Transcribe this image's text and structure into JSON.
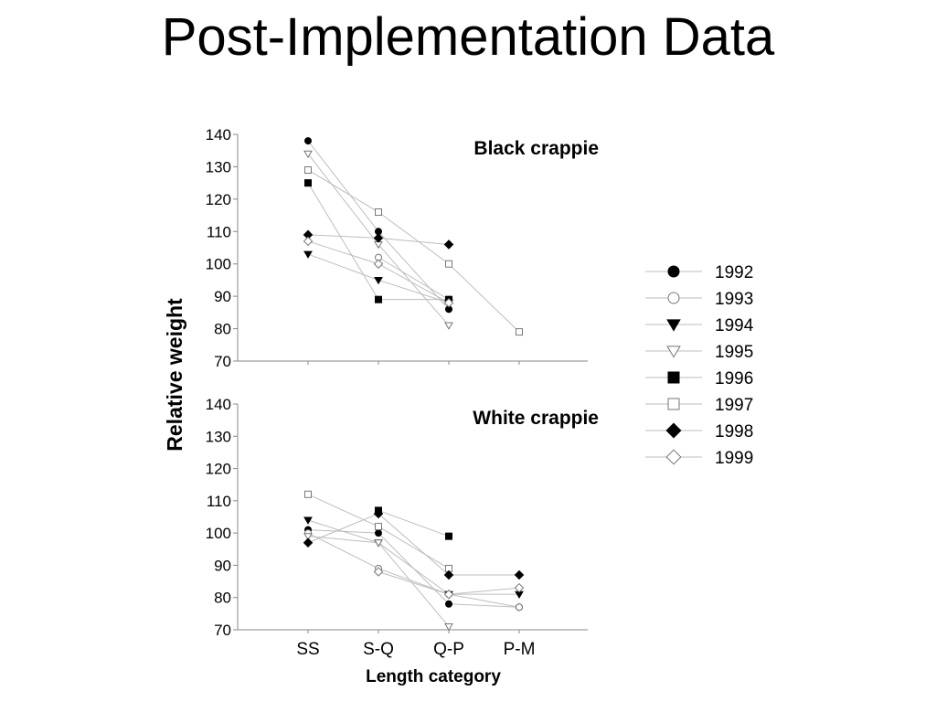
{
  "slide": {
    "title": "Post-Implementation Data"
  },
  "chart_data": [
    {
      "type": "line",
      "title": "Black crappie",
      "xlabel": "Length category",
      "ylabel": "Relative weight",
      "categories": [
        "SS",
        "S-Q",
        "Q-P",
        "P-M"
      ],
      "ylim": [
        70,
        140
      ],
      "yticks": [
        70,
        80,
        90,
        100,
        110,
        120,
        130,
        140
      ],
      "legend_position": "right",
      "series": [
        {
          "name": "1992",
          "marker": "circle",
          "filled": true,
          "values": [
            138,
            110,
            86,
            null
          ]
        },
        {
          "name": "1993",
          "marker": "circle",
          "filled": false,
          "values": [
            null,
            102,
            89,
            null
          ]
        },
        {
          "name": "1994",
          "marker": "triangle-down",
          "filled": true,
          "values": [
            103,
            95,
            88,
            null
          ]
        },
        {
          "name": "1995",
          "marker": "triangle-down",
          "filled": false,
          "values": [
            134,
            106,
            81,
            null
          ]
        },
        {
          "name": "1996",
          "marker": "square",
          "filled": true,
          "values": [
            125,
            89,
            89,
            null
          ]
        },
        {
          "name": "1997",
          "marker": "square",
          "filled": false,
          "values": [
            129,
            116,
            100,
            79
          ]
        },
        {
          "name": "1998",
          "marker": "diamond",
          "filled": true,
          "values": [
            109,
            108,
            106,
            null
          ]
        },
        {
          "name": "1999",
          "marker": "diamond",
          "filled": false,
          "values": [
            107,
            100,
            88,
            null
          ]
        }
      ]
    },
    {
      "type": "line",
      "title": "White crappie",
      "xlabel": "Length category",
      "ylabel": "Relative weight",
      "categories": [
        "SS",
        "S-Q",
        "Q-P",
        "P-M"
      ],
      "ylim": [
        70,
        140
      ],
      "yticks": [
        70,
        80,
        90,
        100,
        110,
        120,
        130,
        140
      ],
      "legend_position": "right",
      "series": [
        {
          "name": "1992",
          "marker": "circle",
          "filled": true,
          "values": [
            101,
            100,
            78,
            77
          ]
        },
        {
          "name": "1993",
          "marker": "circle",
          "filled": false,
          "values": [
            100,
            89,
            81,
            77
          ]
        },
        {
          "name": "1994",
          "marker": "triangle-down",
          "filled": true,
          "values": [
            104,
            97,
            81,
            81
          ]
        },
        {
          "name": "1995",
          "marker": "triangle-down",
          "filled": false,
          "values": [
            99,
            97,
            71,
            null
          ]
        },
        {
          "name": "1996",
          "marker": "square",
          "filled": true,
          "values": [
            null,
            107,
            99,
            null
          ]
        },
        {
          "name": "1997",
          "marker": "square",
          "filled": false,
          "values": [
            112,
            102,
            89,
            null
          ]
        },
        {
          "name": "1998",
          "marker": "diamond",
          "filled": true,
          "values": [
            97,
            106,
            87,
            87
          ]
        },
        {
          "name": "1999",
          "marker": "diamond",
          "filled": false,
          "values": [
            null,
            88,
            81,
            83
          ]
        }
      ]
    }
  ]
}
